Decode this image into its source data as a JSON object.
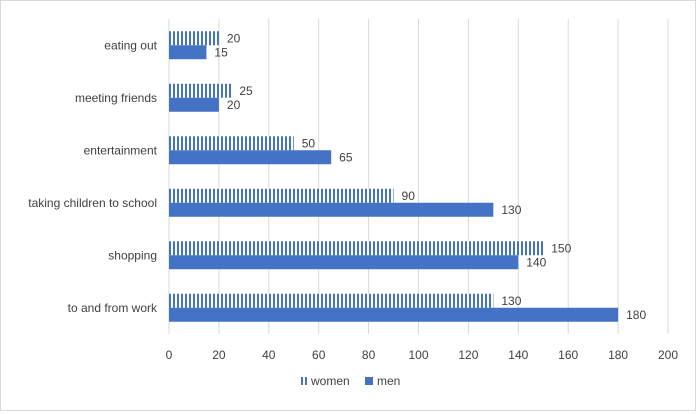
{
  "chart_data": {
    "type": "bar",
    "orientation": "horizontal",
    "categories": [
      "eating out",
      "meeting friends",
      "entertainment",
      "taking children to school",
      "shopping",
      "to and from work"
    ],
    "series": [
      {
        "name": "women",
        "values": [
          20,
          25,
          50,
          90,
          150,
          130
        ],
        "color": "#4472c4",
        "pattern": "vertical-stripes"
      },
      {
        "name": "men",
        "values": [
          15,
          20,
          65,
          130,
          140,
          180
        ],
        "color": "#4472c4",
        "pattern": "solid"
      }
    ],
    "xlim": [
      0,
      200
    ],
    "xticks": [
      0,
      20,
      40,
      60,
      80,
      100,
      120,
      140,
      160,
      180,
      200
    ],
    "grid": "vertical",
    "legend_position": "bottom",
    "title": "",
    "xlabel": "",
    "ylabel": ""
  }
}
